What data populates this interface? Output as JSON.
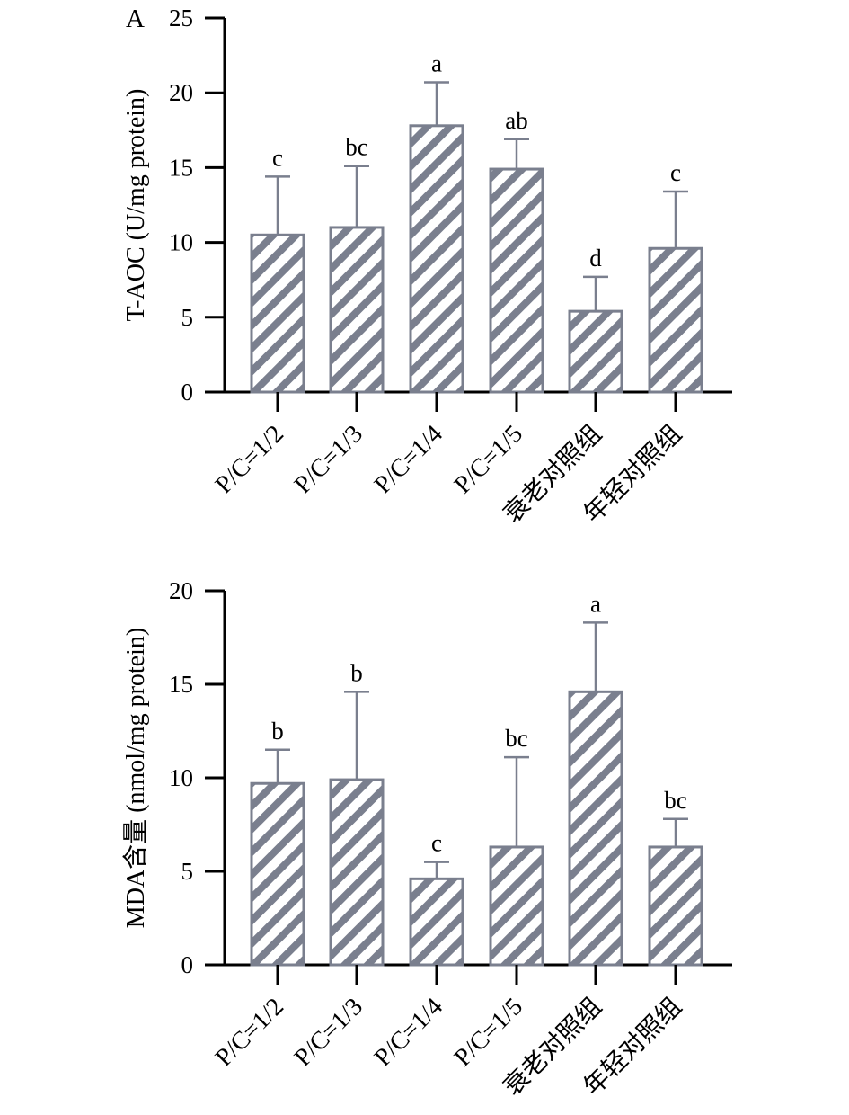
{
  "colors": {
    "bar_stroke": "#7a7f8e",
    "hatch": "#7a7f8e",
    "axis": "#000000"
  },
  "chart_data": [
    {
      "type": "bar",
      "panel_label": "A",
      "title": "",
      "xlabel": "",
      "ylabel": "T-AOC (U/mg protein)",
      "ylim": [
        0,
        25
      ],
      "yticks": [
        0,
        5,
        10,
        15,
        20,
        25
      ],
      "categories": [
        "P/C=1/2",
        "P/C=1/3",
        "P/C=1/4",
        "P/C=1/5",
        "衰老对照组",
        "年轻对照组"
      ],
      "values": [
        10.5,
        11.0,
        17.8,
        14.9,
        5.4,
        9.6
      ],
      "error": [
        3.9,
        4.1,
        2.9,
        2.0,
        2.3,
        3.8
      ],
      "significance": [
        "c",
        "bc",
        "a",
        "ab",
        "d",
        "c"
      ],
      "fill": "diagonal-hatch",
      "grid": false
    },
    {
      "type": "bar",
      "panel_label": "",
      "title": "",
      "xlabel": "",
      "ylabel": "MDA含量 (nmol/mg protein)",
      "ylim": [
        0,
        20
      ],
      "yticks": [
        0,
        5,
        10,
        15,
        20
      ],
      "categories": [
        "P/C=1/2",
        "P/C=1/3",
        "P/C=1/4",
        "P/C=1/5",
        "衰老对照组",
        "年轻对照组"
      ],
      "values": [
        9.7,
        9.9,
        4.6,
        6.3,
        14.6,
        6.3
      ],
      "error": [
        1.8,
        4.7,
        0.9,
        4.8,
        3.7,
        1.5
      ],
      "significance": [
        "b",
        "b",
        "c",
        "bc",
        "a",
        "bc"
      ],
      "fill": "diagonal-hatch",
      "grid": false
    }
  ]
}
